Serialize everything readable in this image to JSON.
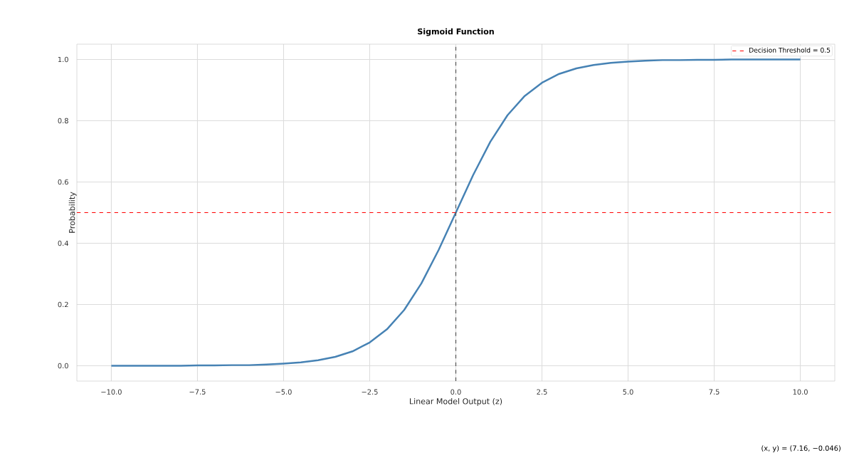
{
  "chart_data": {
    "type": "line",
    "title": "Sigmoid Function",
    "xlabel": "Linear Model Output (z)",
    "ylabel": "Probability",
    "x": [
      -10,
      -9.5,
      -9,
      -8.5,
      -8,
      -7.5,
      -7,
      -6.5,
      -6,
      -5.5,
      -5,
      -4.5,
      -4,
      -3.5,
      -3,
      -2.5,
      -2,
      -1.5,
      -1,
      -0.5,
      0,
      0.5,
      1,
      1.5,
      2,
      2.5,
      3,
      3.5,
      4,
      4.5,
      5,
      5.5,
      6,
      6.5,
      7,
      7.5,
      8,
      8.5,
      9,
      9.5,
      10
    ],
    "series": [
      {
        "color": "#4682b4",
        "values": [
          0.0,
          0.0,
          0.0,
          0.0,
          0.0,
          0.001,
          0.001,
          0.002,
          0.002,
          0.004,
          0.007,
          0.011,
          0.018,
          0.029,
          0.047,
          0.076,
          0.119,
          0.182,
          0.269,
          0.378,
          0.5,
          0.622,
          0.731,
          0.818,
          0.881,
          0.924,
          0.953,
          0.971,
          0.982,
          0.989,
          0.993,
          0.996,
          0.998,
          0.998,
          0.999,
          0.999,
          1.0,
          1.0,
          1.0,
          1.0,
          1.0
        ]
      }
    ],
    "xlim": [
      -11,
      11
    ],
    "ylim": [
      -0.05,
      1.05
    ],
    "xticks": [
      {
        "value": -10,
        "label": "−10.0"
      },
      {
        "value": -7.5,
        "label": "−7.5"
      },
      {
        "value": -5,
        "label": "−5.0"
      },
      {
        "value": -2.5,
        "label": "−2.5"
      },
      {
        "value": 0,
        "label": "0.0"
      },
      {
        "value": 2.5,
        "label": "2.5"
      },
      {
        "value": 5,
        "label": "5.0"
      },
      {
        "value": 7.5,
        "label": "7.5"
      },
      {
        "value": 10,
        "label": "10.0"
      }
    ],
    "yticks": [
      {
        "value": 0,
        "label": "0.0"
      },
      {
        "value": 0.2,
        "label": "0.2"
      },
      {
        "value": 0.4,
        "label": "0.4"
      },
      {
        "value": 0.6,
        "label": "0.6"
      },
      {
        "value": 0.8,
        "label": "0.8"
      },
      {
        "value": 1,
        "label": "1.0"
      }
    ],
    "ref_lines": [
      {
        "axis": "y",
        "value": 0.5,
        "label": "Decision Threshold = 0.5",
        "color": "#ff0000",
        "line_style": "dashed"
      },
      {
        "axis": "x",
        "value": 0,
        "color": "#555555",
        "line_style": "dashed"
      }
    ],
    "annotations": [
      "(x, y) = (7.16, −0.046)"
    ],
    "grid": true,
    "legend": "top right",
    "line_style": "solid",
    "marker": "none"
  }
}
